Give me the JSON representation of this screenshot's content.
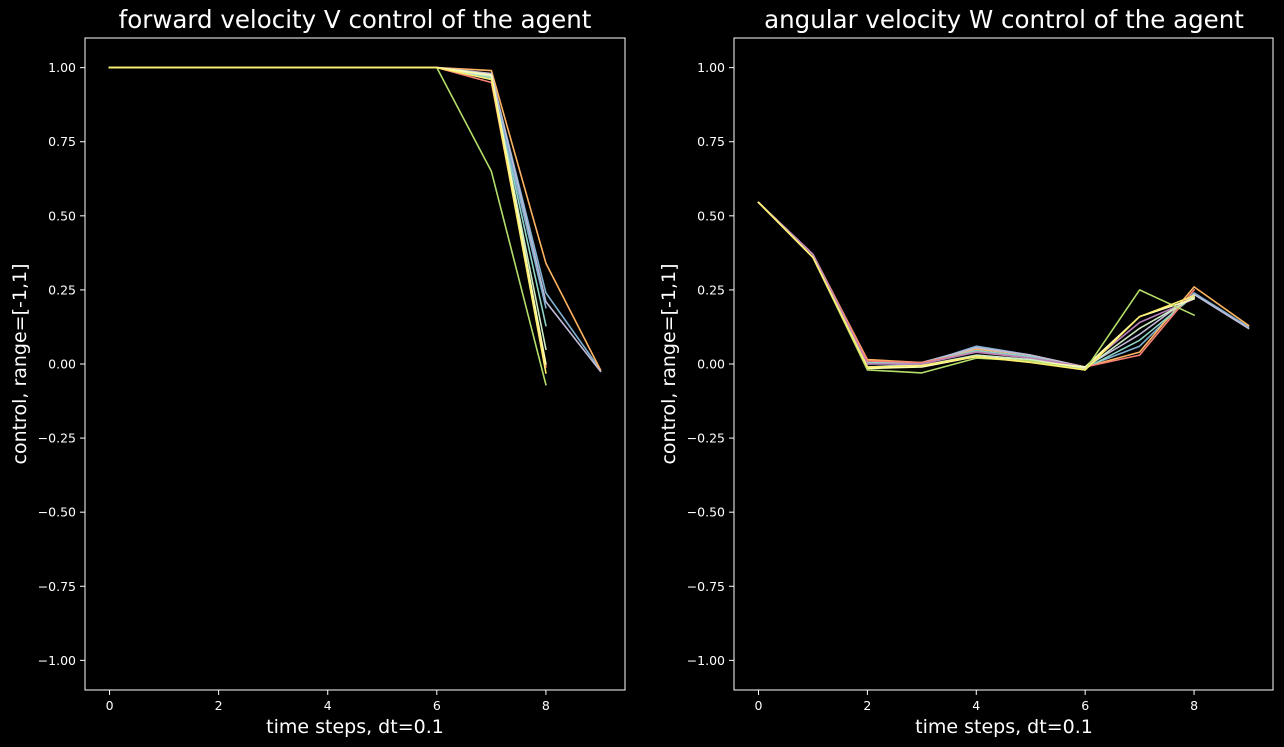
{
  "colors": {
    "background": "#000000",
    "foreground": "#ffffff",
    "palette": [
      "#8dd3c7",
      "#feffb3",
      "#bfbbd9",
      "#fa8174",
      "#81b1d2",
      "#fdb462",
      "#b3de69",
      "#bc82bd",
      "#ccebc4",
      "#ffed6f"
    ]
  },
  "chart_data": [
    {
      "type": "line",
      "title": "forward velocity V control of the agent",
      "xlabel": "time steps, dt=0.1",
      "ylabel": "control, range=[-1,1]",
      "xlim": [
        -0.45,
        9.45
      ],
      "ylim": [
        -1.1,
        1.1
      ],
      "xticks": [
        0,
        2,
        4,
        6,
        8
      ],
      "yticks": [
        1.0,
        0.75,
        0.5,
        0.25,
        0.0,
        -0.25,
        -0.5,
        -0.75,
        -1.0
      ],
      "xtick_labels": [
        "0",
        "2",
        "4",
        "6",
        "8"
      ],
      "ytick_labels": [
        "1.00",
        "0.75",
        "0.50",
        "0.25",
        "0.00",
        "−0.25",
        "−0.50",
        "−0.75",
        "−1.00"
      ],
      "grid": false,
      "series": [
        {
          "color": "#81b1d2",
          "x": [
            0,
            1,
            2,
            3,
            4,
            5,
            6,
            7,
            8,
            9
          ],
          "y": [
            1,
            1,
            1,
            1,
            1,
            1,
            1,
            0.975,
            0.24,
            -0.02
          ]
        },
        {
          "color": "#fdb462",
          "x": [
            0,
            1,
            2,
            3,
            4,
            5,
            6,
            7,
            8,
            9
          ],
          "y": [
            1,
            1,
            1,
            1,
            1,
            1,
            1,
            0.99,
            0.34,
            -0.02
          ]
        },
        {
          "color": "#bfbbd9",
          "x": [
            0,
            1,
            2,
            3,
            4,
            5,
            6,
            7,
            8,
            9
          ],
          "y": [
            1,
            1,
            1,
            1,
            1,
            1,
            1,
            0.98,
            0.21,
            -0.025
          ]
        },
        {
          "color": "#8dd3c7",
          "x": [
            0,
            1,
            2,
            3,
            4,
            5,
            6,
            7,
            8
          ],
          "y": [
            1,
            1,
            1,
            1,
            1,
            1,
            1,
            0.965,
            0.13
          ]
        },
        {
          "color": "#81b1d2",
          "x": [
            0,
            1,
            2,
            3,
            4,
            5,
            6,
            7,
            8
          ],
          "y": [
            1,
            1,
            1,
            1,
            1,
            1,
            1,
            0.96,
            0.19
          ]
        },
        {
          "color": "#ccebc4",
          "x": [
            0,
            1,
            2,
            3,
            4,
            5,
            6,
            7,
            8
          ],
          "y": [
            1,
            1,
            1,
            1,
            1,
            1,
            1,
            0.97,
            0.05
          ]
        },
        {
          "color": "#fa8174",
          "x": [
            0,
            1,
            2,
            3,
            4,
            5,
            6,
            7,
            8
          ],
          "y": [
            1,
            1,
            1,
            1,
            1,
            1,
            1,
            0.95,
            -0.01
          ]
        },
        {
          "color": "#feffb3",
          "x": [
            0,
            1,
            2,
            3,
            4,
            5,
            6,
            7,
            8
          ],
          "y": [
            1,
            1,
            1,
            1,
            1,
            1,
            1,
            0.975,
            0.0
          ]
        },
        {
          "color": "#b3de69",
          "x": [
            0,
            1,
            2,
            3,
            4,
            5,
            6,
            7,
            8
          ],
          "y": [
            1,
            1,
            1,
            1,
            1,
            1,
            1,
            0.65,
            -0.07
          ]
        },
        {
          "color": "#ffed6f",
          "x": [
            0,
            1,
            2,
            3,
            4,
            5,
            6,
            7,
            8
          ],
          "y": [
            1,
            1,
            1,
            1,
            1,
            1,
            1,
            0.96,
            -0.03
          ]
        }
      ]
    },
    {
      "type": "line",
      "title": "angular velocity W control of the agent",
      "xlabel": "time steps, dt=0.1",
      "ylabel": "control, range=[-1,1]",
      "xlim": [
        -0.45,
        9.45
      ],
      "ylim": [
        -1.1,
        1.1
      ],
      "xticks": [
        0,
        2,
        4,
        6,
        8
      ],
      "yticks": [
        1.0,
        0.75,
        0.5,
        0.25,
        0.0,
        -0.25,
        -0.5,
        -0.75,
        -1.0
      ],
      "xtick_labels": [
        "0",
        "2",
        "4",
        "6",
        "8"
      ],
      "ytick_labels": [
        "1.00",
        "0.75",
        "0.50",
        "0.25",
        "0.00",
        "−0.25",
        "−0.50",
        "−0.75",
        "−1.00"
      ],
      "grid": false,
      "series": [
        {
          "color": "#81b1d2",
          "x": [
            0,
            1,
            2,
            3,
            4,
            5,
            6,
            7,
            8,
            9
          ],
          "y": [
            0.545,
            0.37,
            -0.01,
            0.0,
            0.06,
            0.03,
            -0.01,
            0.06,
            0.24,
            0.125
          ]
        },
        {
          "color": "#fdb462",
          "x": [
            0,
            1,
            2,
            3,
            4,
            5,
            6,
            7,
            8,
            9
          ],
          "y": [
            0.545,
            0.37,
            0.015,
            0.005,
            0.05,
            0.03,
            -0.01,
            0.04,
            0.26,
            0.13
          ]
        },
        {
          "color": "#bfbbd9",
          "x": [
            0,
            1,
            2,
            3,
            4,
            5,
            6,
            7,
            8,
            9
          ],
          "y": [
            0.545,
            0.37,
            0.0,
            0.005,
            0.055,
            0.03,
            -0.01,
            0.1,
            0.235,
            0.12
          ]
        },
        {
          "color": "#8dd3c7",
          "x": [
            0,
            1,
            2,
            3,
            4,
            5,
            6,
            7,
            8
          ],
          "y": [
            0.545,
            0.37,
            0.005,
            0.005,
            0.045,
            0.025,
            -0.015,
            0.08,
            0.23
          ]
        },
        {
          "color": "#fa8174",
          "x": [
            0,
            1,
            2,
            3,
            4,
            5,
            6,
            7,
            8
          ],
          "y": [
            0.545,
            0.37,
            0.01,
            0.005,
            0.04,
            0.02,
            -0.01,
            0.03,
            0.25
          ]
        },
        {
          "color": "#bc82bd",
          "x": [
            0,
            1,
            2,
            3,
            4,
            5,
            6,
            7,
            8
          ],
          "y": [
            0.545,
            0.37,
            0.0,
            0.0,
            0.04,
            0.02,
            -0.01,
            0.14,
            0.22
          ]
        },
        {
          "color": "#ccebc4",
          "x": [
            0,
            1,
            2,
            3,
            4,
            5,
            6,
            7,
            8
          ],
          "y": [
            0.545,
            0.36,
            -0.01,
            -0.005,
            0.03,
            0.015,
            -0.015,
            0.12,
            0.225
          ]
        },
        {
          "color": "#feffb3",
          "x": [
            0,
            1,
            2,
            3,
            4,
            5,
            6,
            7,
            8
          ],
          "y": [
            0.545,
            0.36,
            -0.015,
            -0.01,
            0.025,
            0.01,
            -0.01,
            0.16,
            0.22
          ]
        },
        {
          "color": "#b3de69",
          "x": [
            0,
            1,
            2,
            3,
            4,
            5,
            6,
            7,
            8
          ],
          "y": [
            0.545,
            0.36,
            -0.02,
            -0.03,
            0.02,
            0.01,
            -0.02,
            0.25,
            0.165
          ]
        },
        {
          "color": "#ffed6f",
          "x": [
            0,
            1,
            2,
            3,
            4,
            5,
            6,
            7,
            8
          ],
          "y": [
            0.545,
            0.36,
            -0.01,
            -0.005,
            0.025,
            0.005,
            -0.02,
            0.16,
            0.23
          ]
        }
      ]
    }
  ]
}
